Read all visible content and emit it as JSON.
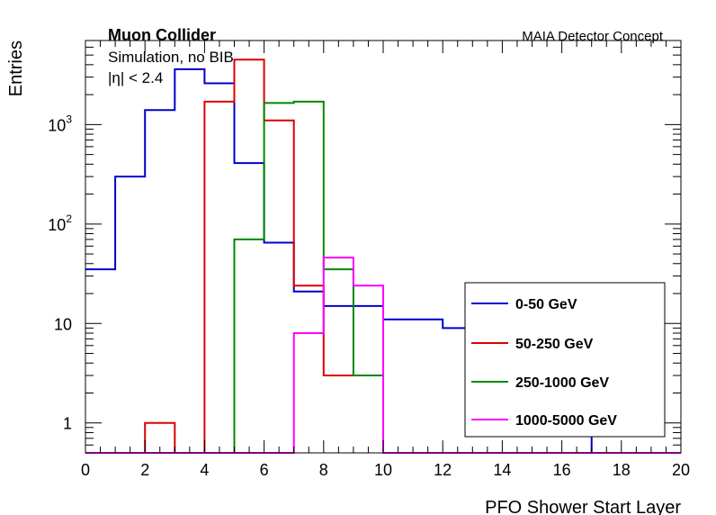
{
  "chart_data": {
    "type": "histogram",
    "annotations": {
      "experiment": "Muon Collider",
      "simulation": "Simulation, no BIB",
      "cut": "|η| < 2.4",
      "concept": "MAIA Detector Concept"
    },
    "xlabel": "PFO Shower Start Layer",
    "ylabel": "Entries",
    "xlim": [
      0,
      20
    ],
    "ylim": [
      0.5,
      7000
    ],
    "yscale": "log",
    "bin_edges": [
      0,
      1,
      2,
      3,
      4,
      5,
      6,
      7,
      8,
      9,
      10,
      11,
      12,
      13,
      14,
      15,
      16,
      17,
      18,
      19,
      20
    ],
    "x_ticks": [
      "0",
      "2",
      "4",
      "6",
      "8",
      "10",
      "12",
      "14",
      "16",
      "18",
      "20"
    ],
    "y_ticks": [
      {
        "value": 1,
        "label": "1"
      },
      {
        "value": 10,
        "label": "10"
      },
      {
        "value": 100,
        "label": "10",
        "exp": "2"
      },
      {
        "value": 1000,
        "label": "10",
        "exp": "3"
      }
    ],
    "legend_position": "bottom-right",
    "series": [
      {
        "name": "0-50 GeV",
        "color": "#0000cc",
        "values": [
          35,
          300,
          1400,
          3600,
          2600,
          410,
          65,
          21,
          15,
          15,
          11,
          11,
          9,
          9,
          9,
          9,
          9,
          0,
          0,
          0
        ]
      },
      {
        "name": "50-250 GeV",
        "color": "#dd0000",
        "values": [
          0,
          0,
          1,
          0,
          1700,
          4500,
          1100,
          24,
          3,
          3,
          0,
          0,
          0,
          0,
          0,
          0,
          0,
          0,
          0,
          0
        ]
      },
      {
        "name": "250-1000 GeV",
        "color": "#008800",
        "values": [
          0,
          0,
          0,
          0,
          0,
          70,
          1650,
          1700,
          35,
          3,
          0,
          0,
          0,
          0,
          0,
          0,
          0,
          0,
          0,
          0
        ]
      },
      {
        "name": "1000-5000 GeV",
        "color": "#ff00ff",
        "values": [
          0,
          0,
          0,
          0,
          0,
          0,
          0,
          8,
          46,
          24,
          0,
          0,
          0,
          0,
          0,
          0,
          0,
          0,
          0,
          0
        ]
      }
    ]
  }
}
